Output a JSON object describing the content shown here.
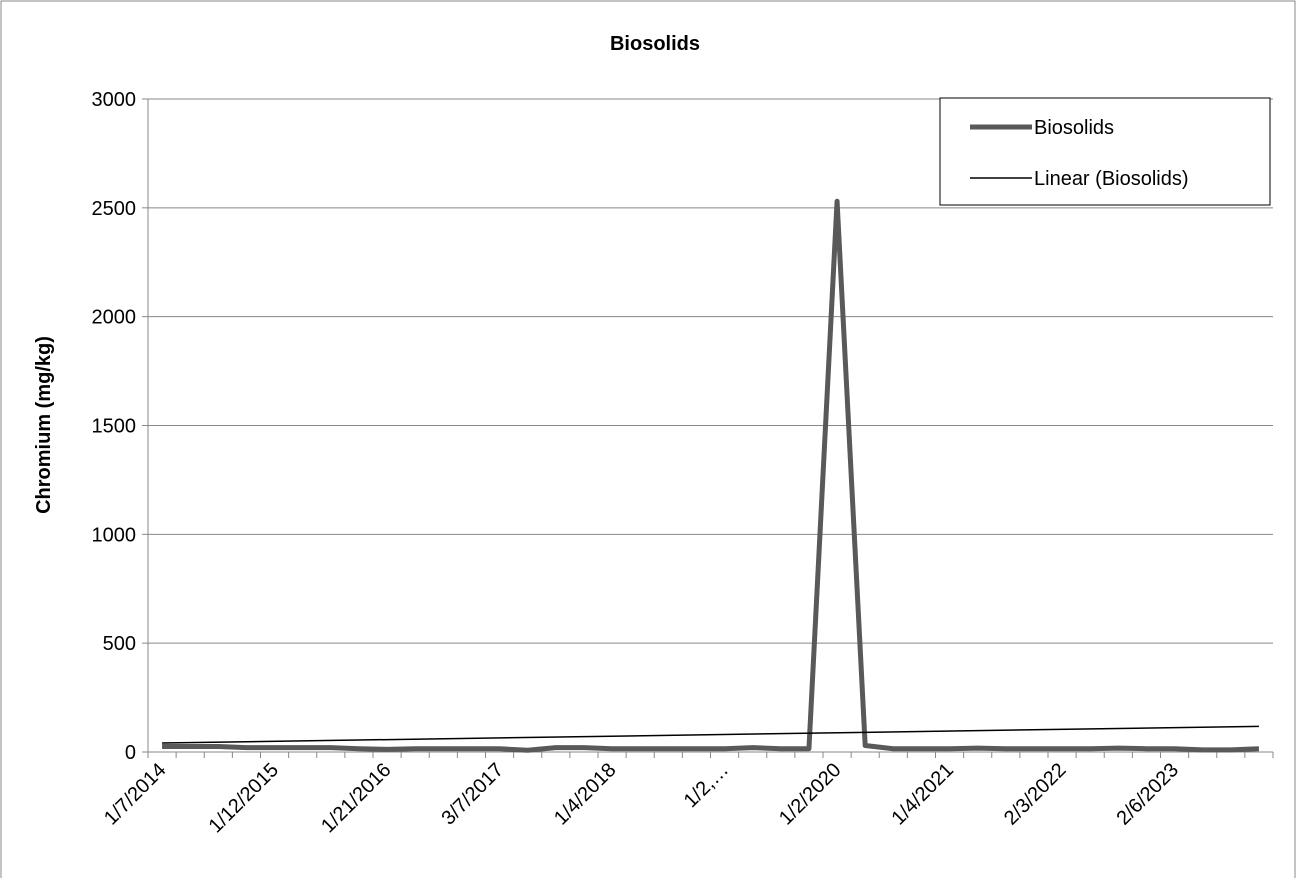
{
  "chart_data": {
    "type": "line",
    "title": "Biosolids",
    "y_label": "Chromium (mg/kg)",
    "categories": [
      "1/7/2014",
      null,
      null,
      null,
      "1/12/2015",
      null,
      null,
      null,
      "1/21/2016",
      null,
      null,
      null,
      "3/7/2017",
      null,
      null,
      null,
      "1/4/2018",
      null,
      null,
      null,
      "1/2,…",
      null,
      null,
      null,
      "1/2/2020",
      null,
      null,
      null,
      "1/4/2021",
      null,
      null,
      null,
      "2/3/2022",
      null,
      null,
      null,
      "2/6/2023",
      null,
      null,
      null
    ],
    "series": [
      {
        "name": "Biosolids",
        "color": "#595959",
        "values": [
          25,
          25,
          25,
          20,
          20,
          20,
          20,
          15,
          12,
          15,
          15,
          15,
          15,
          8,
          20,
          20,
          15,
          15,
          15,
          15,
          15,
          20,
          15,
          15,
          2530,
          30,
          15,
          15,
          15,
          18,
          15,
          15,
          15,
          15,
          18,
          15,
          15,
          10,
          10,
          15
        ]
      }
    ],
    "trendline": {
      "name": "Linear (Biosolids)",
      "color": "#000000"
    },
    "ylim": [
      0,
      3000
    ],
    "yticks": [
      0,
      500,
      1000,
      1500,
      2000,
      2500,
      3000
    ],
    "grid": true,
    "legend": "top-right"
  }
}
